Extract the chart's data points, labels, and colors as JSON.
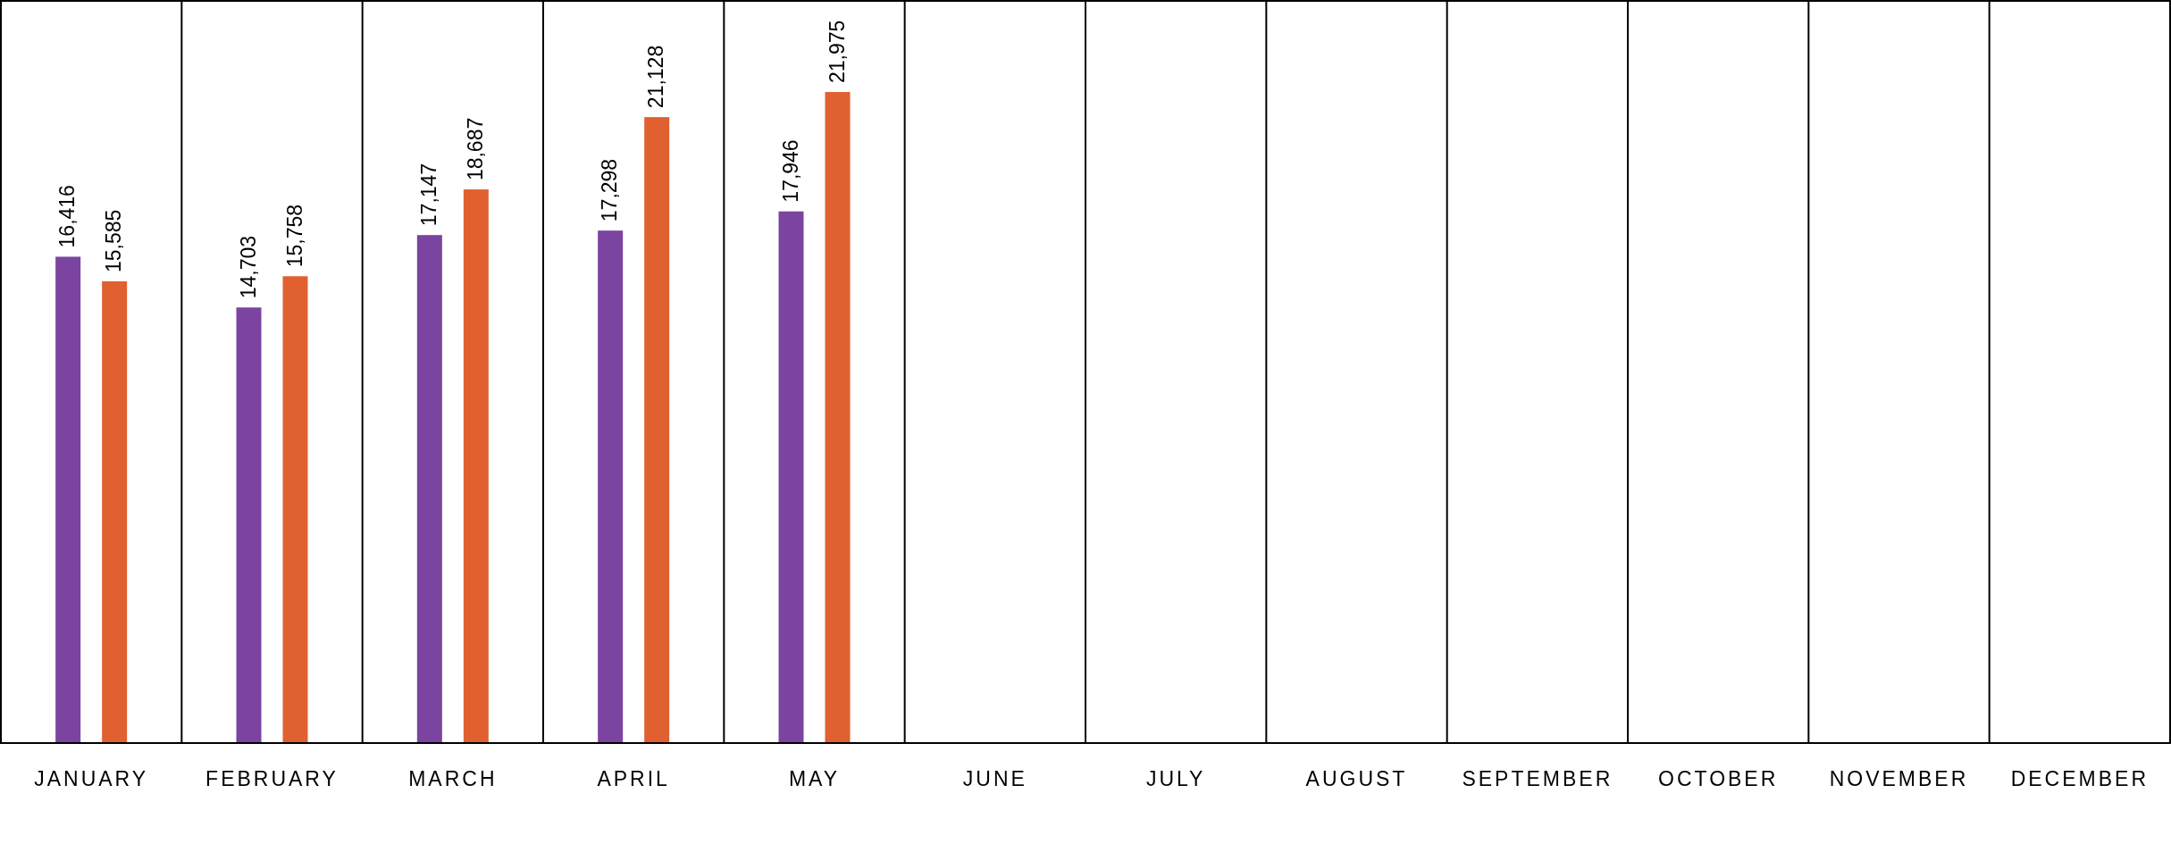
{
  "chart_data": {
    "type": "bar",
    "categories": [
      "JANUARY",
      "FEBRUARY",
      "MARCH",
      "APRIL",
      "MAY",
      "JUNE",
      "JULY",
      "AUGUST",
      "SEPTEMBER",
      "OCTOBER",
      "NOVEMBER",
      "DECEMBER"
    ],
    "series": [
      {
        "color": "#7b44a0",
        "values": [
          16416,
          14703,
          17147,
          17298,
          17946,
          null,
          null,
          null,
          null,
          null,
          null,
          null
        ],
        "value_labels": [
          "16,416",
          "14,703",
          "17,147",
          "17,298",
          "17,946",
          null,
          null,
          null,
          null,
          null,
          null,
          null
        ]
      },
      {
        "color": "#e06030",
        "values": [
          15585,
          15758,
          18687,
          21128,
          21975,
          null,
          null,
          null,
          null,
          null,
          null,
          null
        ],
        "value_labels": [
          "15,585",
          "15,758",
          "18,687",
          "21,128",
          "21,975",
          null,
          null,
          null,
          null,
          null,
          null,
          null
        ]
      }
    ],
    "grid": "x"
  }
}
